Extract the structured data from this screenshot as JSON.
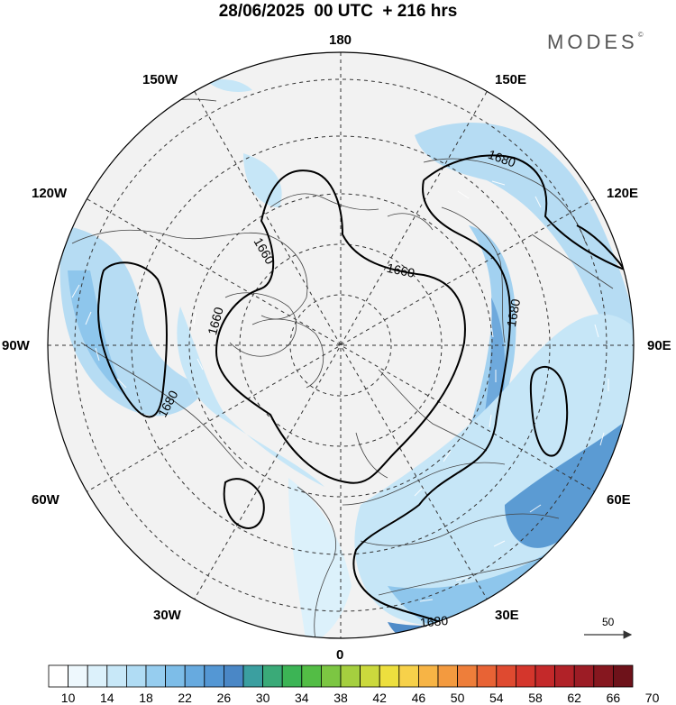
{
  "title": "28/06/2025  00 UTC  + 216 hrs",
  "brand": "MODES",
  "brand_mark": "©",
  "longitude_labels": {
    "n180": "180",
    "w150": "150W",
    "e150": "150E",
    "w120": "120W",
    "e120": "120E",
    "w90": "90W",
    "e90": "90E",
    "w60": "60W",
    "e60": "60E",
    "w30": "30W",
    "e30": "30E",
    "n0": "0"
  },
  "contour_labels": [
    "1680",
    "1660",
    "1660",
    "1660",
    "1680",
    "1680",
    "1680"
  ],
  "reference_vector": {
    "label": "50",
    "value": 50
  },
  "colorbar": {
    "labels": [
      "10",
      "14",
      "18",
      "22",
      "26",
      "30",
      "34",
      "38",
      "42",
      "46",
      "50",
      "54",
      "58",
      "62",
      "66",
      "70"
    ],
    "colors": [
      "#ffffff",
      "#eef8fd",
      "#dcf1fb",
      "#c8e8f8",
      "#b0dcf4",
      "#96cdef",
      "#7dbde8",
      "#67aadf",
      "#5497d4",
      "#4a87c6",
      "#3b9fa0",
      "#3aaa78",
      "#3cb455",
      "#53bd45",
      "#7cc642",
      "#a5cf3f",
      "#cbd93d",
      "#eddf3e",
      "#f7d14a",
      "#f7b445",
      "#f39a3f",
      "#ee7e3a",
      "#e86335",
      "#df4a30",
      "#d4362c",
      "#c4292a",
      "#b12228",
      "#9c1c25",
      "#86171f",
      "#6e121a"
    ]
  }
}
